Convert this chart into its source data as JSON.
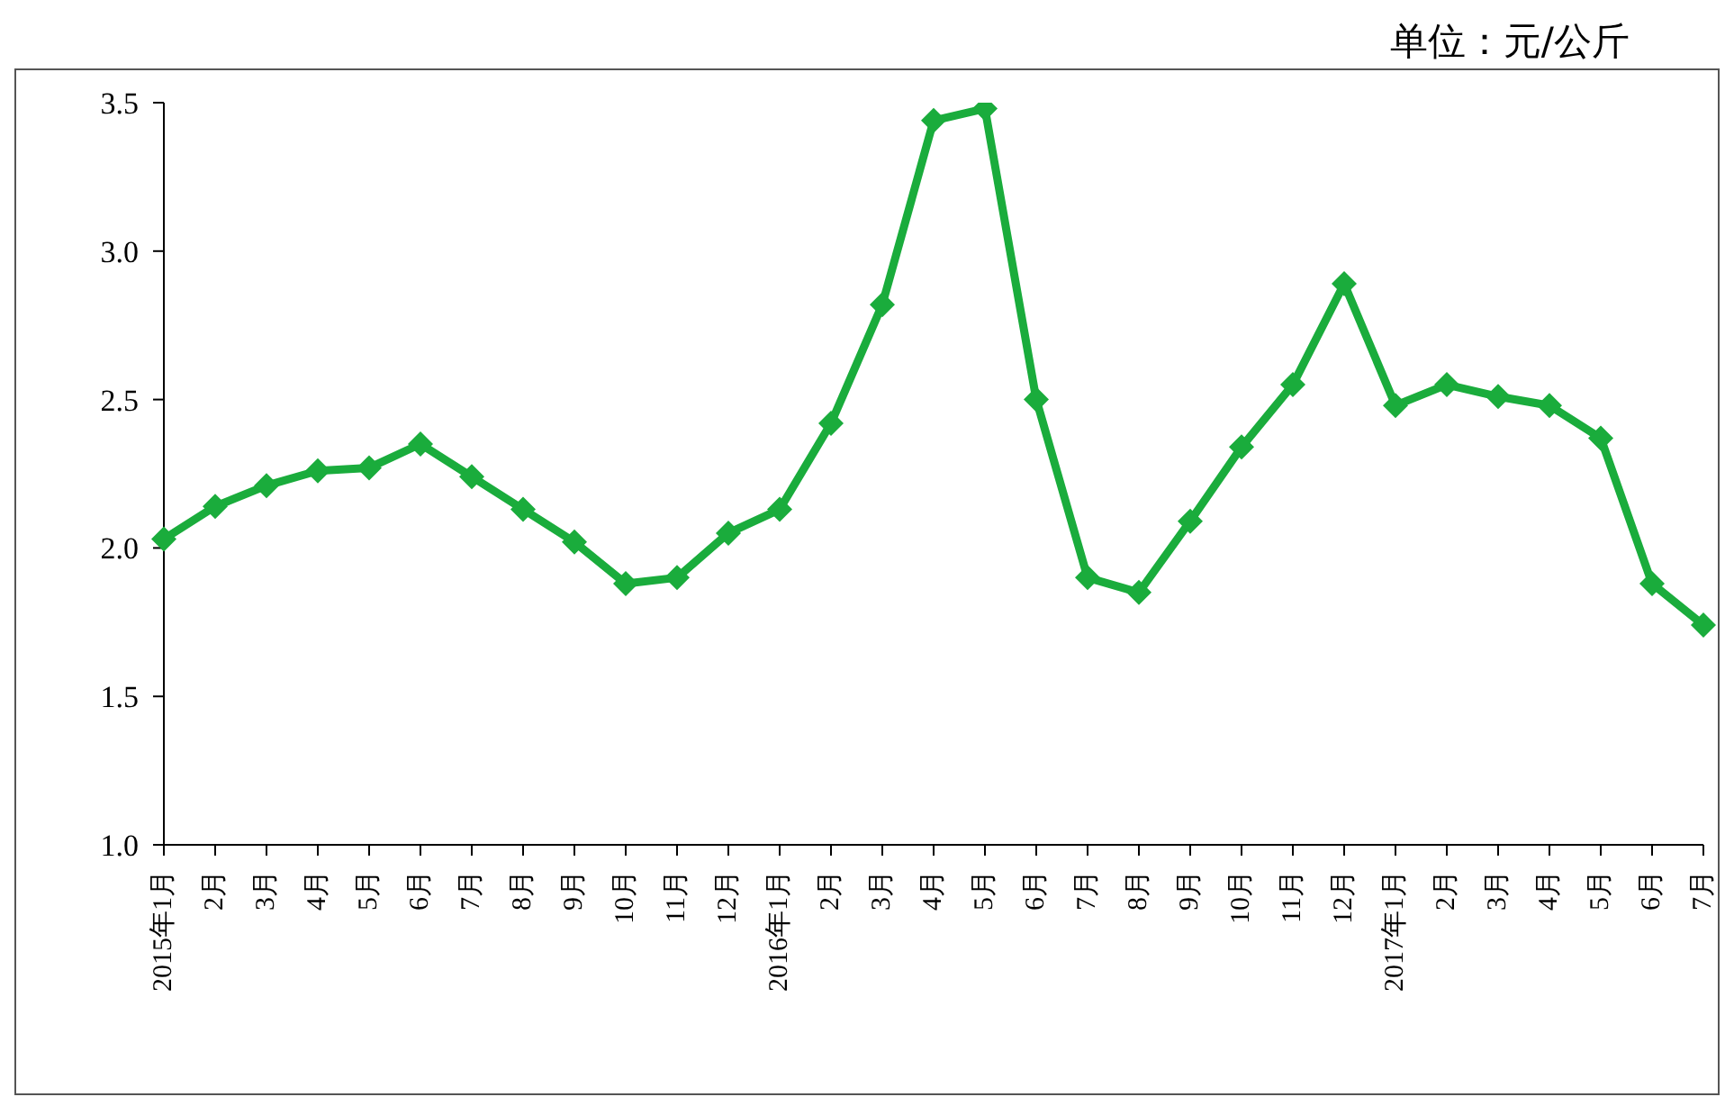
{
  "chart_data": {
    "type": "line",
    "annotations": [
      "单位：元/公斤"
    ],
    "categories": [
      "2015年1月",
      "2月",
      "3月",
      "4月",
      "5月",
      "6月",
      "7月",
      "8月",
      "9月",
      "10月",
      "11月",
      "12月",
      "2016年1月",
      "2月",
      "3月",
      "4月",
      "5月",
      "6月",
      "7月",
      "8月",
      "9月",
      "10月",
      "11月",
      "12月",
      "2017年1月",
      "2月",
      "3月",
      "4月",
      "5月",
      "6月",
      "7月"
    ],
    "series": [
      {
        "color": "#1aac3c",
        "values": [
          2.03,
          2.14,
          2.21,
          2.26,
          2.27,
          2.35,
          2.24,
          2.13,
          2.02,
          1.88,
          1.9,
          2.05,
          2.13,
          2.42,
          2.82,
          3.44,
          3.48,
          2.5,
          1.9,
          1.85,
          2.09,
          2.34,
          2.55,
          2.89,
          2.48,
          2.55,
          2.51,
          2.48,
          2.37,
          1.88,
          1.74
        ]
      }
    ],
    "ylim": [
      1,
      3.5
    ],
    "yticks": [
      {
        "value": 1,
        "label": "1.0"
      },
      {
        "value": 1.5,
        "label": "1.5"
      },
      {
        "value": 2,
        "label": "2.0"
      },
      {
        "value": 2.5,
        "label": "2.5"
      },
      {
        "value": 3,
        "label": "3.0"
      },
      {
        "value": 3.5,
        "label": "3.5"
      }
    ],
    "marker": "diamond",
    "line_style": "solid"
  }
}
